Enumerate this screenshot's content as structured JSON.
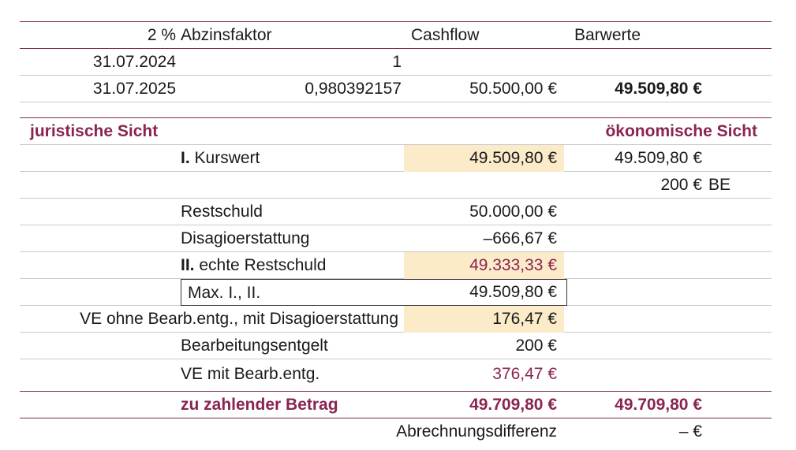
{
  "table": {
    "header": {
      "rate": "2 %",
      "factor": "Abzinsfaktor",
      "cashflow": "Cashflow",
      "present_values": "Barwerte"
    },
    "rows_top": [
      {
        "date": "31.07.2024",
        "factor": "1",
        "cashflow": "",
        "present_value": ""
      },
      {
        "date": "31.07.2025",
        "factor": "0,980392157",
        "cashflow": "50.500,00 €",
        "present_value": "49.509,80 €"
      }
    ],
    "section": {
      "legal_view": "juristische Sicht",
      "economic_view": "ökonomische Sicht"
    },
    "kurswert": {
      "label_prefix": "I.",
      "label": "Kurswert",
      "value": "49.509,80 €",
      "econ": "49.509,80 €"
    },
    "be_row": {
      "value": "200 €",
      "suffix": "BE"
    },
    "restschuld": {
      "label": "Restschuld",
      "value": "50.000,00 €"
    },
    "disagio": {
      "label": "Disagioerstattung",
      "value": "–666,67 €"
    },
    "echte_restschuld": {
      "label_prefix": "II.",
      "label": "echte Restschuld",
      "value": "49.333,33 €"
    },
    "max": {
      "label": "Max. I., II.",
      "value": "49.509,80 €"
    },
    "ve_ohne": {
      "label": "VE ohne Bearb.entg., mit Disagioerstattung",
      "value": "176,47 €"
    },
    "bearbeitungsentgelt": {
      "label": "Bearbeitungsentgelt",
      "value": "200 €"
    },
    "ve_mit": {
      "label": "VE mit Bearb.entg.",
      "value": "376,47 €"
    },
    "zu_zahlen": {
      "label": "zu zahlender Betrag",
      "value": "49.709,80 €",
      "econ": "49.709,80 €"
    },
    "abrechnung": {
      "label": "Abrechnungsdifferenz",
      "value": "– €"
    }
  },
  "colors": {
    "accent": "#8a2452",
    "highlight": "#fcebc9",
    "grid": "#c8c8c8"
  }
}
